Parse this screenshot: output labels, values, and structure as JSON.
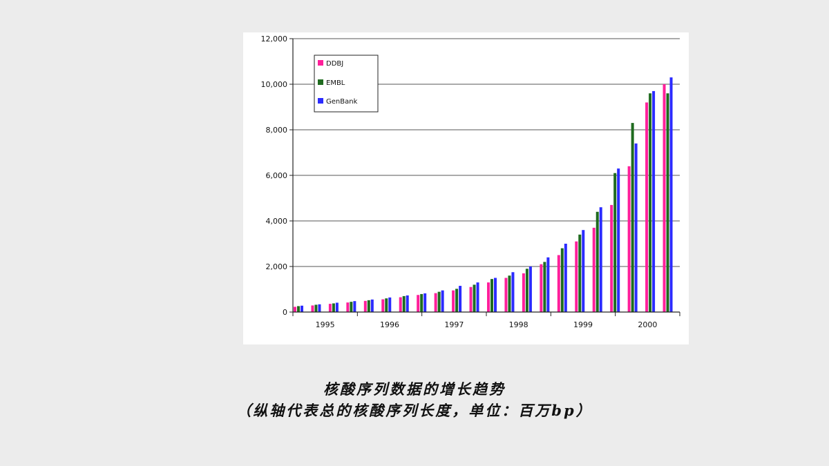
{
  "caption": {
    "line1": "核酸序列数据的增长趋势",
    "line2": "（纵轴代表总的核酸序列长度，单位：百万bp）"
  },
  "colors": {
    "DDBJ": "#ff1f9a",
    "EMBL": "#1f6b1f",
    "GenBank": "#2b2bff"
  },
  "chart_data": {
    "type": "bar",
    "ylim": [
      0,
      12000
    ],
    "yticks": [
      0,
      2000,
      4000,
      6000,
      8000,
      10000,
      12000
    ],
    "ytick_labels": [
      "0",
      "2,000",
      "4,000",
      "6,000",
      "8,000",
      "10,000",
      "12,000"
    ],
    "grid": true,
    "legend_position": "top-left",
    "year_labels": [
      "1995",
      "1996",
      "1997",
      "1998",
      "1999",
      "2000"
    ],
    "series": [
      {
        "name": "DDBJ",
        "values": [
          230,
          290,
          360,
          420,
          490,
          560,
          650,
          750,
          830,
          950,
          1100,
          1300,
          1500,
          1700,
          2100,
          2500,
          3100,
          3700,
          4700,
          6400,
          9200,
          10000
        ]
      },
      {
        "name": "EMBL",
        "values": [
          260,
          320,
          380,
          450,
          520,
          600,
          700,
          790,
          890,
          1020,
          1200,
          1450,
          1600,
          1900,
          2200,
          2800,
          3400,
          4400,
          6100,
          8300,
          9600,
          9600
        ]
      },
      {
        "name": "GenBank",
        "values": [
          280,
          340,
          410,
          480,
          550,
          640,
          730,
          820,
          950,
          1150,
          1300,
          1500,
          1750,
          2000,
          2400,
          3000,
          3600,
          4600,
          6300,
          7400,
          9700,
          10300
        ]
      }
    ]
  }
}
